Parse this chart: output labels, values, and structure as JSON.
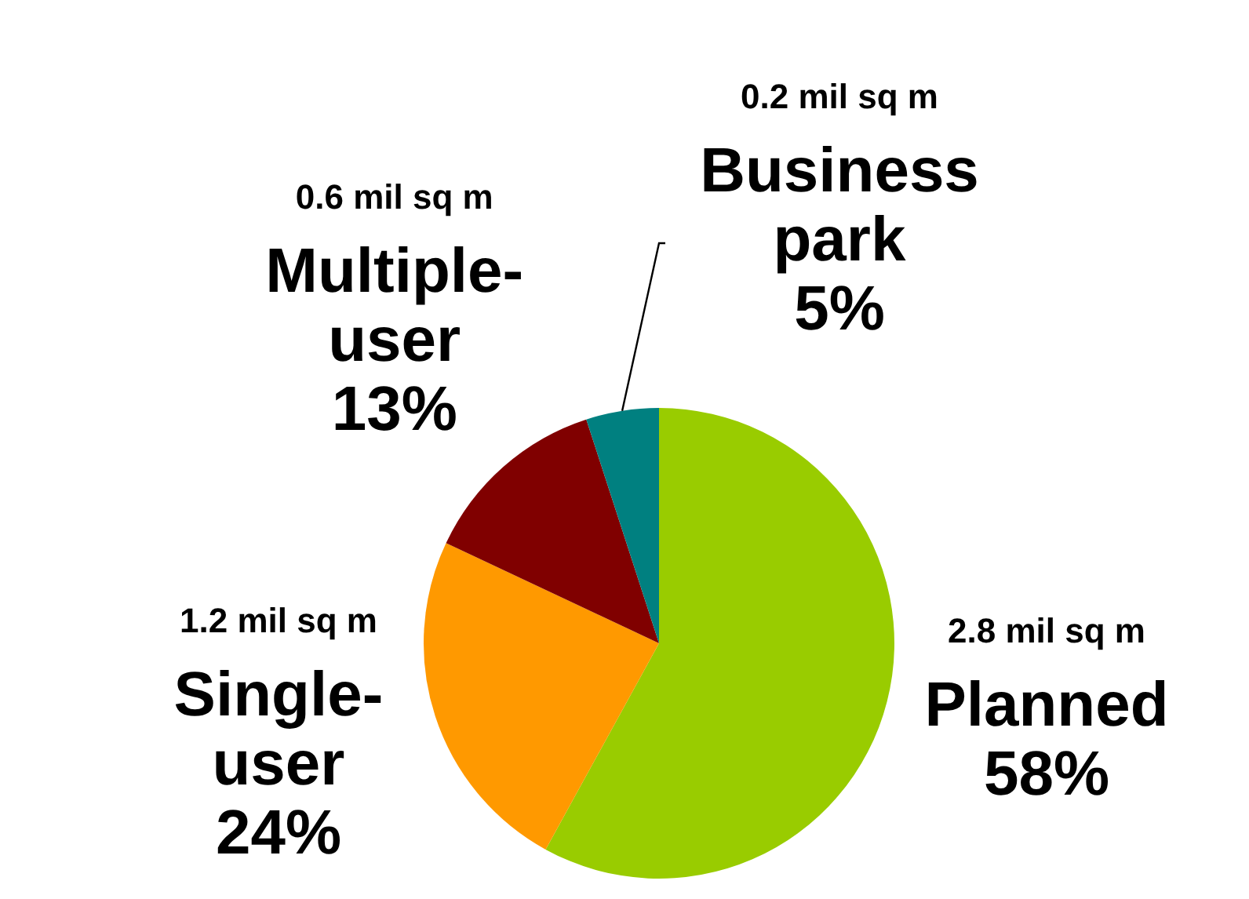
{
  "chart_data": {
    "type": "pie",
    "categories": [
      "Planned",
      "Single-user",
      "Multiple-user",
      "Business park"
    ],
    "values": [
      58,
      24,
      13,
      5
    ],
    "value_labels": [
      "58%",
      "24%",
      "13%",
      "5%"
    ],
    "colors": [
      "#99cc00",
      "#ff9900",
      "#800000",
      "#008080"
    ],
    "annotations": [
      "2.8 mil sq m",
      "1.2 mil sq m",
      "0.6 mil sq m",
      "0.2 mil sq m"
    ],
    "legend": false
  }
}
